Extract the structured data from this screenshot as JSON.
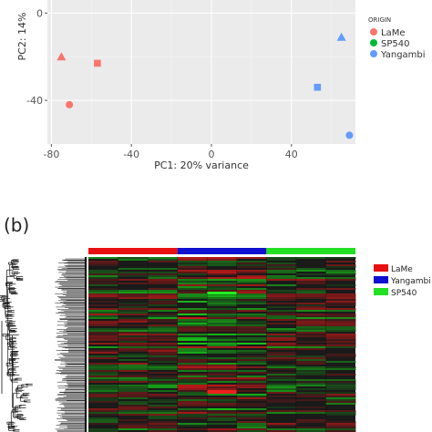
{
  "chart_data": [
    {
      "type": "scatter",
      "xlabel": "PC1: 20% variance",
      "ylabel": "PC2: 14%",
      "xlim": [
        -82,
        72
      ],
      "ylim": [
        -60,
        6
      ],
      "xticks": [
        -80,
        -40,
        0,
        40
      ],
      "xtick_labels": [
        "-80",
        "-40",
        "0",
        "40"
      ],
      "yticks": [
        0,
        -40
      ],
      "ytick_labels": [
        "0",
        "-40"
      ],
      "grid": true,
      "legend": {
        "title": "ORIGIN",
        "position": "right",
        "entries": [
          {
            "label": "LaMe",
            "color": "#f8766d"
          },
          {
            "label": "SP540",
            "color": "#00ba38"
          },
          {
            "label": "Yangambi",
            "color": "#619cff"
          }
        ]
      },
      "series": [
        {
          "group": "LaMe",
          "color": "#f8766d",
          "points": [
            {
              "x": -75,
              "y": -20,
              "shape": "triangle"
            },
            {
              "x": -57,
              "y": -23,
              "shape": "square"
            },
            {
              "x": -71,
              "y": -42,
              "shape": "circle"
            }
          ]
        },
        {
          "group": "Yangambi",
          "color": "#619cff",
          "points": [
            {
              "x": 65,
              "y": -11,
              "shape": "triangle"
            },
            {
              "x": 53,
              "y": -34,
              "shape": "square"
            },
            {
              "x": 69,
              "y": -56,
              "shape": "circle"
            }
          ]
        }
      ]
    },
    {
      "type": "heatmap",
      "panel_label": "(b)",
      "groups": [
        {
          "label": "LaMe",
          "color": "#e81010",
          "columns": 3
        },
        {
          "label": "Yangambi",
          "color": "#1010d0",
          "columns": 3
        },
        {
          "label": "SP540",
          "color": "#22e022",
          "columns": 3
        }
      ],
      "colors": {
        "low": "#16e016",
        "mid": "#1a1a1a",
        "high": "#e01818"
      }
    }
  ]
}
